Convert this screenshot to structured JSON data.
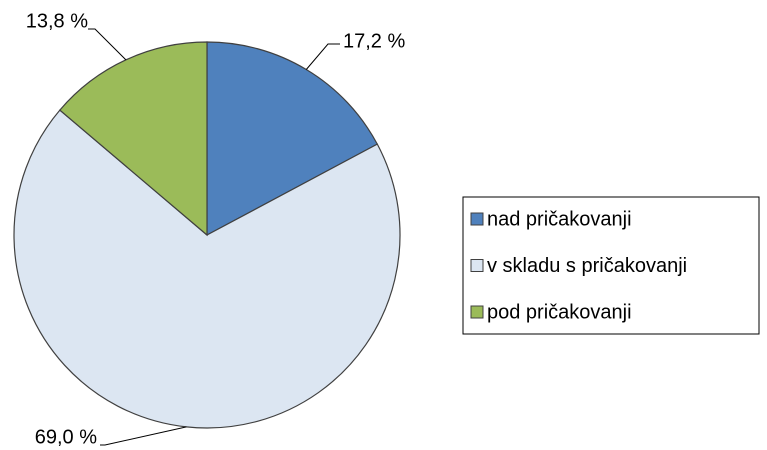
{
  "chart_data": {
    "type": "pie",
    "categories": [
      "nad pričakovanji",
      "v skladu s pričakovanji",
      "pod pričakovanji"
    ],
    "values": [
      17.2,
      69.0,
      13.8
    ],
    "value_labels": [
      "17,2 %",
      "69,0 %",
      "13,8 %"
    ],
    "colors": [
      "#4f81bd",
      "#dce6f2",
      "#9bbb59"
    ],
    "legend": "right"
  }
}
